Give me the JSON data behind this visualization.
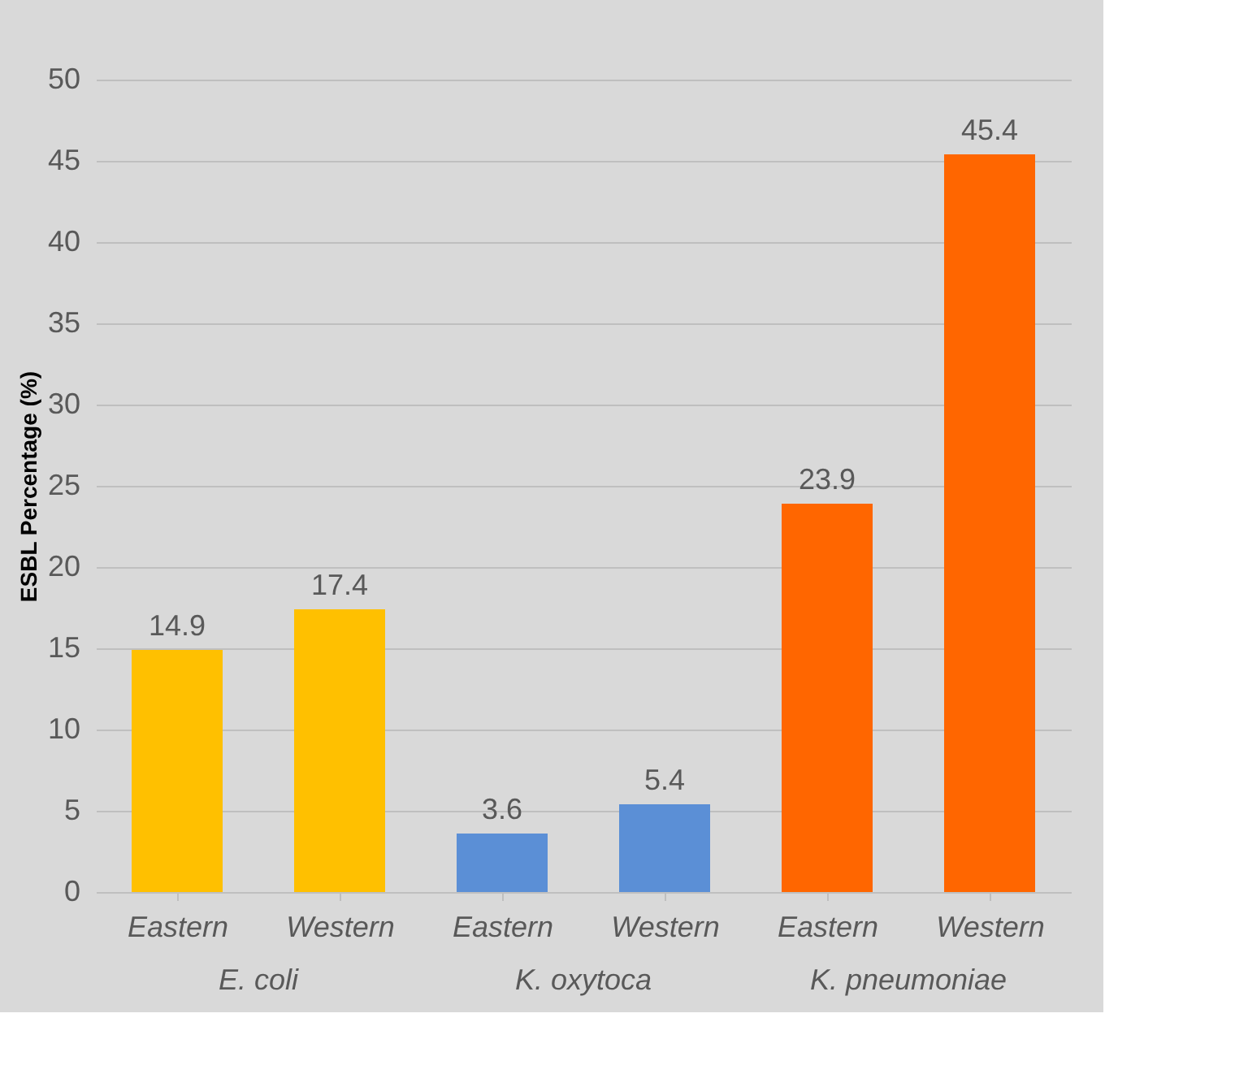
{
  "chart_data": {
    "type": "bar",
    "ylabel": "ESBL Percentage (%)",
    "categories": [
      "Eastern",
      "Western",
      "Eastern",
      "Western",
      "Eastern",
      "Western"
    ],
    "values": [
      14.9,
      17.4,
      3.6,
      5.4,
      23.9,
      45.4
    ],
    "colors": [
      "#ffc000",
      "#ffc000",
      "#5b8fd6",
      "#5b8fd6",
      "#ff6600",
      "#ff6600"
    ],
    "ylim": [
      0,
      50
    ],
    "yticks": [
      0,
      5,
      10,
      15,
      20,
      25,
      30,
      35,
      40,
      45,
      50
    ],
    "grid": "y",
    "data_labels": true,
    "annotations": [
      "E. coli",
      "K. oxytoca",
      "K. pneumoniae"
    ]
  }
}
